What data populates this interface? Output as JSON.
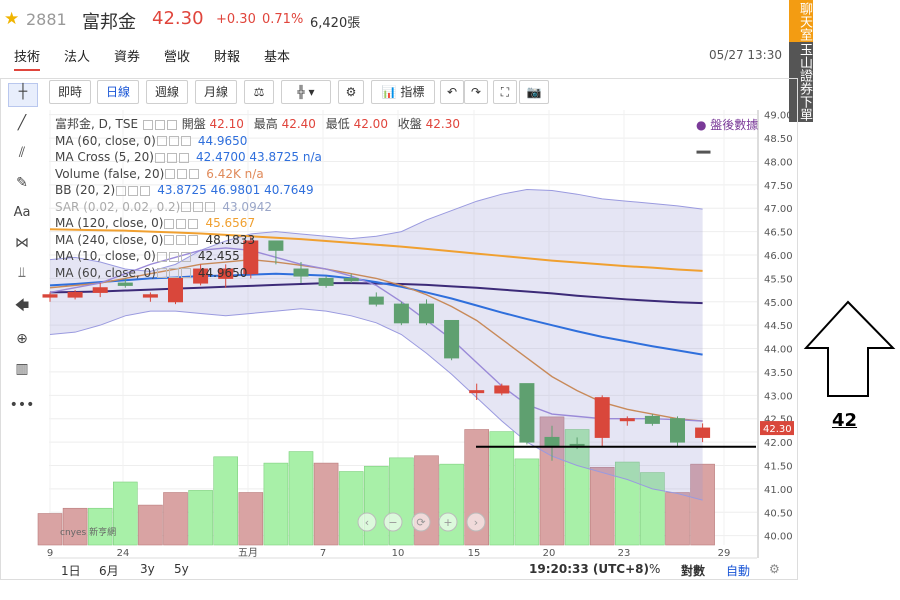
{
  "header": {
    "code": "2881",
    "name": "富邦金",
    "price": "42.30",
    "change": "+0.30",
    "change_pct": "0.71%",
    "volume": "6,420張"
  },
  "tabs": [
    "技術",
    "法人",
    "資券",
    "營收",
    "財報",
    "基本"
  ],
  "datetime": "05/27 13:30",
  "side_buttons": [
    "聊天室",
    "玉山證券下單"
  ],
  "toolbar": {
    "intraday": "即時",
    "daily": "日線",
    "weekly": "週線",
    "monthly": "月線",
    "indicators": "指標"
  },
  "legend": {
    "title": "富邦金, D, TSE",
    "ohlc": {
      "open_label": "開盤",
      "open": "42.10",
      "high_label": "最高",
      "high": "42.40",
      "low_label": "最低",
      "low": "42.00",
      "close_label": "收盤",
      "close": "42.30"
    },
    "after_hours": "盤後數據",
    "rows": [
      {
        "name": "MA (60, close, 0)",
        "values": "44.9650",
        "color": "#2f6fdc"
      },
      {
        "name": "MA Cross (5, 20)",
        "values": "42.4700  43.8725  n/a",
        "color": "#2f6fdc"
      },
      {
        "name": "Volume (false, 20)",
        "values": "6.42K  n/a",
        "color": "#e08a5a"
      },
      {
        "name": "BB (20, 2)",
        "values": "43.8725  46.9801  40.7649",
        "color": "#2f6fdc"
      },
      {
        "name": "SAR (0.02, 0.02, 0.2)",
        "values": "43.0942",
        "color": "#9aa6c8"
      },
      {
        "name": "MA (120, close, 0)",
        "values": "45.6567",
        "color": "#f0a030"
      },
      {
        "name": "MA (240, close, 0)",
        "values": "48.1833",
        "color": "#333333"
      },
      {
        "name": "MA (10, close, 0)",
        "values": "42.455",
        "color": "#333333"
      },
      {
        "name": "MA (60, close, 0)",
        "values": "44.9650",
        "color": "#333333"
      }
    ]
  },
  "bottom": {
    "ranges": [
      "1日",
      "6月",
      "3y",
      "5y"
    ],
    "time": "19:20:33 (UTC+8)",
    "pct": "%",
    "log": "對數",
    "auto": "自動"
  },
  "watermark": "cnyes 新亨網",
  "annotation": "42",
  "chart_data": {
    "type": "candlestick",
    "ylim": [
      39.8,
      49.1
    ],
    "y_ticks": [
      40.0,
      40.5,
      41.0,
      41.5,
      42.0,
      42.5,
      43.0,
      43.5,
      44.0,
      44.5,
      45.0,
      45.5,
      46.0,
      46.5,
      47.0,
      47.5,
      48.0,
      48.5,
      49.0
    ],
    "x_tick_labels": [
      "9",
      "24",
      "五月",
      "7",
      "10",
      "15",
      "20",
      "23",
      "29"
    ],
    "last_price_label": "42.30",
    "horizontal_line": 41.9,
    "candles": [
      {
        "o": 45.1,
        "h": 45.2,
        "l": 45.0,
        "c": 45.15
      },
      {
        "o": 45.1,
        "h": 45.25,
        "l": 45.05,
        "c": 45.2
      },
      {
        "o": 45.2,
        "h": 45.4,
        "l": 45.1,
        "c": 45.3
      },
      {
        "o": 45.4,
        "h": 45.5,
        "l": 45.3,
        "c": 45.35
      },
      {
        "o": 45.1,
        "h": 45.2,
        "l": 45.0,
        "c": 45.15
      },
      {
        "o": 45.0,
        "h": 45.5,
        "l": 44.95,
        "c": 45.5
      },
      {
        "o": 45.4,
        "h": 45.8,
        "l": 45.35,
        "c": 45.7
      },
      {
        "o": 45.5,
        "h": 45.8,
        "l": 45.3,
        "c": 45.7
      },
      {
        "o": 45.6,
        "h": 46.4,
        "l": 45.5,
        "c": 46.3
      },
      {
        "o": 46.3,
        "h": 46.3,
        "l": 45.8,
        "c": 46.1
      },
      {
        "o": 45.7,
        "h": 45.85,
        "l": 45.4,
        "c": 45.55
      },
      {
        "o": 45.5,
        "h": 45.55,
        "l": 45.3,
        "c": 45.35
      },
      {
        "o": 45.5,
        "h": 45.6,
        "l": 45.4,
        "c": 45.45
      },
      {
        "o": 45.1,
        "h": 45.2,
        "l": 44.9,
        "c": 44.95
      },
      {
        "o": 44.95,
        "h": 45.0,
        "l": 44.5,
        "c": 44.55
      },
      {
        "o": 44.95,
        "h": 45.05,
        "l": 44.5,
        "c": 44.55
      },
      {
        "o": 44.6,
        "h": 44.6,
        "l": 43.75,
        "c": 43.8
      },
      {
        "o": 43.1,
        "h": 43.25,
        "l": 42.9,
        "c": 43.1
      },
      {
        "o": 43.05,
        "h": 43.25,
        "l": 43.0,
        "c": 43.2
      },
      {
        "o": 43.25,
        "h": 43.25,
        "l": 41.95,
        "c": 42.0
      },
      {
        "o": 42.1,
        "h": 42.35,
        "l": 41.6,
        "c": 41.9
      },
      {
        "o": 41.95,
        "h": 42.1,
        "l": 41.85,
        "c": 41.9
      },
      {
        "o": 42.1,
        "h": 43.0,
        "l": 41.9,
        "c": 42.95
      },
      {
        "o": 42.5,
        "h": 42.55,
        "l": 42.35,
        "c": 42.5
      },
      {
        "o": 42.55,
        "h": 42.6,
        "l": 42.35,
        "c": 42.4
      },
      {
        "o": 42.5,
        "h": 42.55,
        "l": 41.9,
        "c": 42.0
      },
      {
        "o": 42.1,
        "h": 42.4,
        "l": 42.0,
        "c": 42.3
      }
    ],
    "extra_marker": {
      "index": 25,
      "value": 48.2
    },
    "ma_long": [
      46.55,
      46.54,
      46.53,
      46.52,
      46.5,
      46.48,
      46.46,
      46.43,
      46.4,
      46.37,
      46.34,
      46.3,
      46.26,
      46.22,
      46.18,
      46.13,
      46.08,
      46.03,
      45.98,
      45.93,
      45.88,
      45.84,
      45.8,
      45.76,
      45.73,
      45.69,
      45.66
    ],
    "ma_dark": [
      45.2,
      45.21,
      45.22,
      45.24,
      45.26,
      45.28,
      45.3,
      45.32,
      45.34,
      45.36,
      45.38,
      45.4,
      45.4,
      45.39,
      45.38,
      45.36,
      45.33,
      45.3,
      45.26,
      45.22,
      45.18,
      45.13,
      45.09,
      45.05,
      45.02,
      44.99,
      44.97
    ],
    "ma_blue": [
      45.35,
      45.38,
      45.42,
      45.46,
      45.5,
      45.52,
      45.55,
      45.56,
      45.58,
      45.6,
      45.58,
      45.56,
      45.5,
      45.42,
      45.32,
      45.2,
      45.07,
      44.92,
      44.77,
      44.63,
      44.5,
      44.37,
      44.25,
      44.15,
      44.05,
      43.96,
      43.87
    ],
    "ma_brown": [
      45.3,
      45.35,
      45.4,
      45.5,
      45.6,
      45.7,
      45.8,
      45.85,
      45.9,
      45.85,
      45.78,
      45.7,
      45.6,
      45.5,
      45.35,
      45.15,
      44.9,
      44.6,
      44.2,
      43.8,
      43.4,
      43.1,
      42.85,
      42.7,
      42.6,
      42.5,
      42.45
    ],
    "ma_purple": [
      45.2,
      45.3,
      45.4,
      45.6,
      45.8,
      45.95,
      46.1,
      46.15,
      46.1,
      45.95,
      45.8,
      45.7,
      45.55,
      45.35,
      45.0,
      44.6,
      44.2,
      43.7,
      43.2,
      42.8,
      42.6,
      42.55,
      42.5,
      42.5,
      42.5,
      42.48,
      42.45
    ],
    "bb_upper": [
      45.9,
      45.95,
      45.85,
      45.7,
      45.65,
      45.8,
      46.1,
      46.3,
      46.45,
      46.5,
      46.45,
      46.4,
      46.35,
      46.4,
      46.5,
      46.75,
      46.95,
      47.15,
      47.3,
      47.4,
      47.38,
      47.3,
      47.2,
      47.15,
      47.1,
      47.05,
      46.98
    ],
    "bb_lower": [
      44.3,
      44.35,
      44.5,
      44.7,
      44.8,
      44.8,
      44.75,
      44.7,
      44.75,
      44.8,
      44.85,
      44.8,
      44.7,
      44.55,
      44.3,
      43.9,
      43.45,
      42.95,
      42.45,
      42.0,
      41.7,
      41.5,
      41.35,
      41.2,
      41.0,
      40.9,
      40.76
    ],
    "volume": [
      0.3,
      0.35,
      0.35,
      0.6,
      0.38,
      0.5,
      0.52,
      0.84,
      0.5,
      0.78,
      0.89,
      0.78,
      0.7,
      0.75,
      0.83,
      0.85,
      0.77,
      1.1,
      1.08,
      0.82,
      1.22,
      1.1,
      0.74,
      0.79,
      0.69,
      0.5,
      0.77
    ],
    "volume_up": [
      true,
      true,
      false,
      false,
      true,
      true,
      false,
      false,
      true,
      false,
      false,
      true,
      false,
      false,
      false,
      true,
      false,
      true,
      false,
      false,
      true,
      false,
      true,
      false,
      false,
      true,
      true
    ]
  }
}
